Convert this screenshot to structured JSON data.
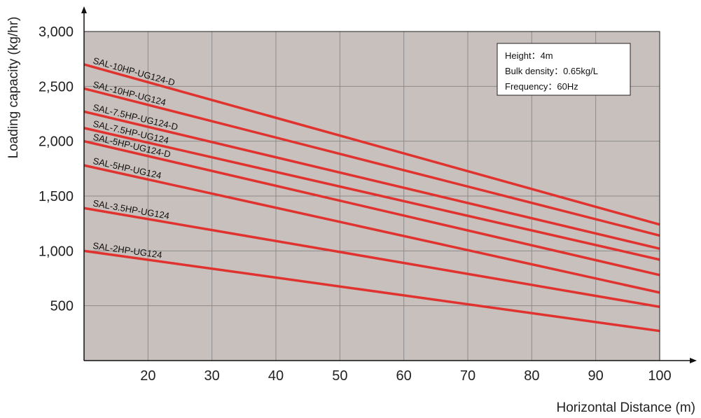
{
  "chart_data": {
    "type": "line",
    "xlabel": "Horizontal Distance (m)",
    "ylabel": "Loading capacity (kg/hr)",
    "xlim": [
      10,
      100
    ],
    "ylim": [
      0,
      3000
    ],
    "x_ticks": [
      "20",
      "30",
      "40",
      "50",
      "60",
      "70",
      "80",
      "90",
      "100"
    ],
    "x_tick_values": [
      20,
      30,
      40,
      50,
      60,
      70,
      80,
      90,
      100
    ],
    "y_ticks": [
      "500",
      "1,000",
      "1,500",
      "2,000",
      "2,500",
      "3,000"
    ],
    "y_tick_values": [
      500,
      1000,
      1500,
      2000,
      2500,
      3000
    ],
    "grid": true,
    "legend_placement": "top-right",
    "colors": {
      "plot_bg": "#c8c0bc",
      "line": "#e0322e",
      "grid": "#8c8c8c"
    },
    "series": [
      {
        "name": "SAL-10HP-UG124-D",
        "x": [
          10,
          100
        ],
        "values": [
          2700,
          1240
        ]
      },
      {
        "name": "SAL-10HP-UG124",
        "x": [
          10,
          100
        ],
        "values": [
          2480,
          1140
        ]
      },
      {
        "name": "SAL-7.5HP-UG124-D",
        "x": [
          10,
          100
        ],
        "values": [
          2270,
          1020
        ]
      },
      {
        "name": "SAL-7.5HP-UG124",
        "x": [
          10,
          100
        ],
        "values": [
          2120,
          920
        ]
      },
      {
        "name": "SAL-5HP-UG124-D",
        "x": [
          10,
          100
        ],
        "values": [
          2000,
          780
        ]
      },
      {
        "name": "SAL-5HP-UG124",
        "x": [
          10,
          100
        ],
        "values": [
          1780,
          620
        ]
      },
      {
        "name": "SAL-3.5HP-UG124",
        "x": [
          10,
          100
        ],
        "values": [
          1390,
          490
        ]
      },
      {
        "name": "SAL-2HP-UG124",
        "x": [
          10,
          100
        ],
        "values": [
          1000,
          270
        ]
      }
    ],
    "annotation": {
      "height": "Height：4m",
      "bulk_density": "Bulk density：0.65kg/L",
      "frequency": "Frequency：60Hz"
    }
  }
}
